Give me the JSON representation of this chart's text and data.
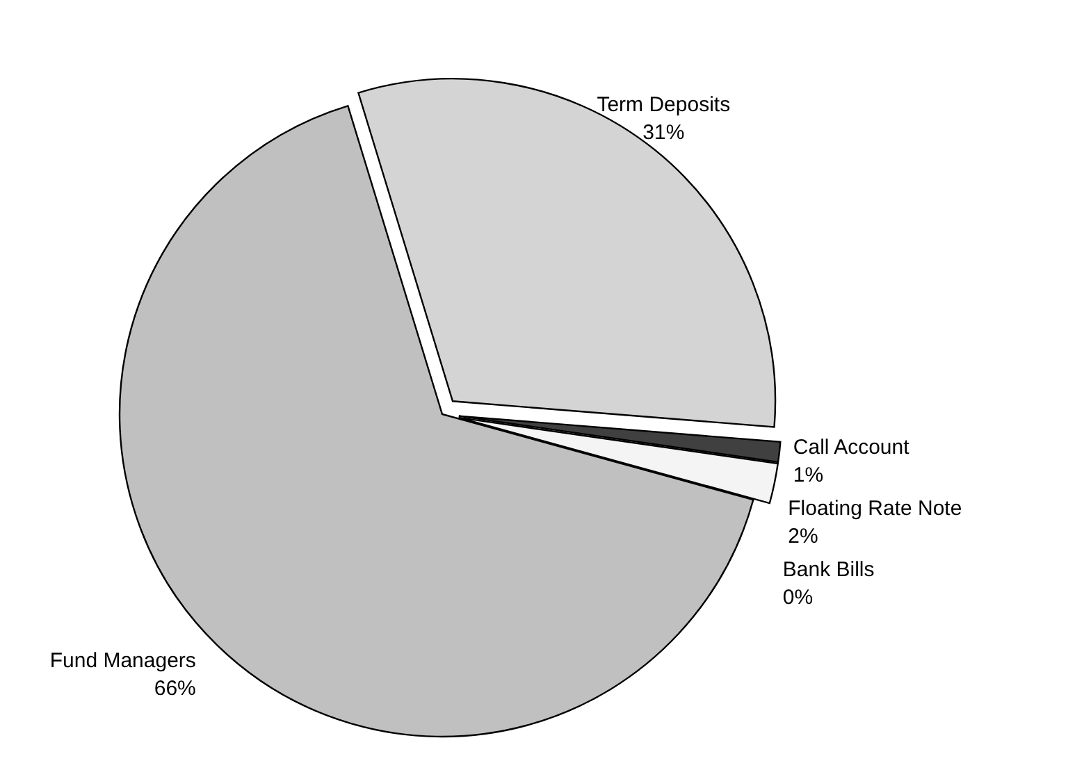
{
  "chart_data": {
    "type": "pie",
    "categories": [
      "Term Deposits",
      "Call Account",
      "Floating Rate Note",
      "Bank Bills",
      "Fund Managers"
    ],
    "values": [
      31,
      1,
      2,
      0,
      66
    ],
    "colors": [
      "#d4d4d4",
      "#404040",
      "#f4f4f4",
      null,
      "#c0c0c0"
    ],
    "value_labels": [
      "31%",
      "1%",
      "2%",
      "0%",
      "66%"
    ],
    "legend": false
  }
}
